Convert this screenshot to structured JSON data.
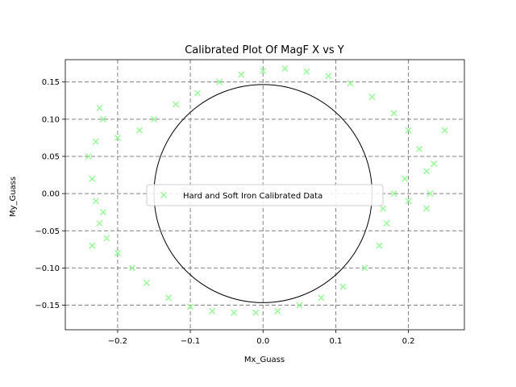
{
  "chart_data": {
    "type": "scatter",
    "title": "Calibrated Plot Of MagF X vs Y",
    "xlabel": "Mx_Guass",
    "ylabel": "My_Guass",
    "xlim": [
      -0.272,
      0.277
    ],
    "ylim": [
      -0.183,
      0.18
    ],
    "x_ticks": [
      -0.2,
      -0.1,
      0.0,
      0.1,
      0.2
    ],
    "x_tick_labels": [
      "−0.2",
      "−0.1",
      "0.0",
      "0.1",
      "0.2"
    ],
    "y_ticks": [
      -0.15,
      -0.1,
      -0.05,
      0.0,
      0.05,
      0.1,
      0.15
    ],
    "y_tick_labels": [
      "−0.15",
      "−0.10",
      "−0.05",
      "0.00",
      "0.05",
      "0.10",
      "0.15"
    ],
    "grid": true,
    "legend_position": "center",
    "series": [
      {
        "name": "Hard and Soft Iron Calibrated Data",
        "marker": "x",
        "color": "#98fb98",
        "points": [
          [
            0.0,
            0.165
          ],
          [
            0.03,
            0.168
          ],
          [
            0.06,
            0.164
          ],
          [
            0.09,
            0.158
          ],
          [
            0.12,
            0.148
          ],
          [
            0.15,
            0.13
          ],
          [
            0.18,
            0.108
          ],
          [
            0.2,
            0.085
          ],
          [
            0.215,
            0.06
          ],
          [
            0.225,
            0.03
          ],
          [
            0.23,
            0.0
          ],
          [
            0.225,
            -0.02
          ],
          [
            0.2,
            -0.01
          ],
          [
            0.18,
            0.0
          ],
          [
            0.165,
            -0.02
          ],
          [
            0.17,
            -0.04
          ],
          [
            0.16,
            -0.07
          ],
          [
            0.14,
            -0.1
          ],
          [
            0.11,
            -0.125
          ],
          [
            0.08,
            -0.14
          ],
          [
            0.05,
            -0.15
          ],
          [
            0.02,
            -0.158
          ],
          [
            -0.01,
            -0.16
          ],
          [
            -0.04,
            -0.16
          ],
          [
            -0.07,
            -0.158
          ],
          [
            -0.1,
            -0.152
          ],
          [
            -0.13,
            -0.14
          ],
          [
            -0.16,
            -0.12
          ],
          [
            -0.18,
            -0.1
          ],
          [
            -0.2,
            -0.08
          ],
          [
            -0.215,
            -0.06
          ],
          [
            -0.225,
            -0.04
          ],
          [
            -0.23,
            -0.01
          ],
          [
            -0.235,
            0.02
          ],
          [
            -0.24,
            0.05
          ],
          [
            -0.23,
            0.07
          ],
          [
            -0.2,
            0.075
          ],
          [
            -0.17,
            0.085
          ],
          [
            -0.15,
            0.1
          ],
          [
            -0.12,
            0.12
          ],
          [
            -0.09,
            0.135
          ],
          [
            -0.06,
            0.15
          ],
          [
            -0.03,
            0.16
          ],
          [
            -0.225,
            0.115
          ],
          [
            -0.22,
            0.1
          ],
          [
            -0.235,
            -0.07
          ],
          [
            -0.22,
            -0.025
          ],
          [
            0.235,
            0.04
          ],
          [
            0.25,
            0.085
          ],
          [
            0.195,
            0.02
          ]
        ]
      }
    ],
    "reference_circle": {
      "center": [
        0.0,
        0.0
      ],
      "radius": 0.15,
      "color": "#000000"
    }
  }
}
